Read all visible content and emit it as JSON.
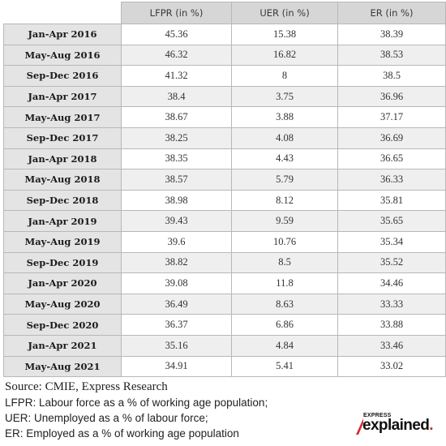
{
  "chart_data": {
    "type": "table",
    "columns": [
      "",
      "LFPR (in %)",
      "UER (in %)",
      "ER (in %)"
    ],
    "rows": [
      [
        "Jan-Apr 2016",
        "45.36",
        "15.38",
        "38.39"
      ],
      [
        "May-Aug 2016",
        "46.32",
        "16.82",
        "38.53"
      ],
      [
        "Sep-Dec 2016",
        "41.32",
        "8",
        "38.5"
      ],
      [
        "Jan-Apr 2017",
        "38.4",
        "3.75",
        "36.96"
      ],
      [
        "May-Aug 2017",
        "38.67",
        "3.88",
        "37.17"
      ],
      [
        "Sep-Dec 2017",
        "38.25",
        "4.08",
        "36.69"
      ],
      [
        "Jan-Apr 2018",
        "38.35",
        "4.43",
        "36.65"
      ],
      [
        "May-Aug 2018",
        "38.57",
        "5.79",
        "36.33"
      ],
      [
        "Sep-Dec 2018",
        "38.98",
        "8.12",
        "35.81"
      ],
      [
        "Jan-Apr 2019",
        "39.43",
        "9.59",
        "35.65"
      ],
      [
        "May-Aug 2019",
        "39.6",
        "10.76",
        "35.34"
      ],
      [
        "Sep-Dec 2019",
        "38.82",
        "8.5",
        "35.52"
      ],
      [
        "Jan-Apr 2020",
        "39.08",
        "11.8",
        "34.46"
      ],
      [
        "May-Aug 2020",
        "36.49",
        "8.63",
        "33.33"
      ],
      [
        "Sep-Dec 2020",
        "36.37",
        "6.86",
        "33.88"
      ],
      [
        "Jan-Apr 2021",
        "35.16",
        "4.84",
        "33.46"
      ],
      [
        "May-Aug 2021",
        "34.91",
        "5.41",
        "33.02"
      ]
    ]
  },
  "notes": {
    "source": "Source: CMIE, Express Research",
    "lfpr": "LFPR: Labour force as a % of working age population;",
    "uer": "UER: Unemployed as a % of labour force;",
    "er": "ER: Employed as a % of working age population"
  },
  "logo": {
    "small": "EXPRESS",
    "big": "explained",
    "dot": ".",
    "color": "#d42b2b"
  }
}
